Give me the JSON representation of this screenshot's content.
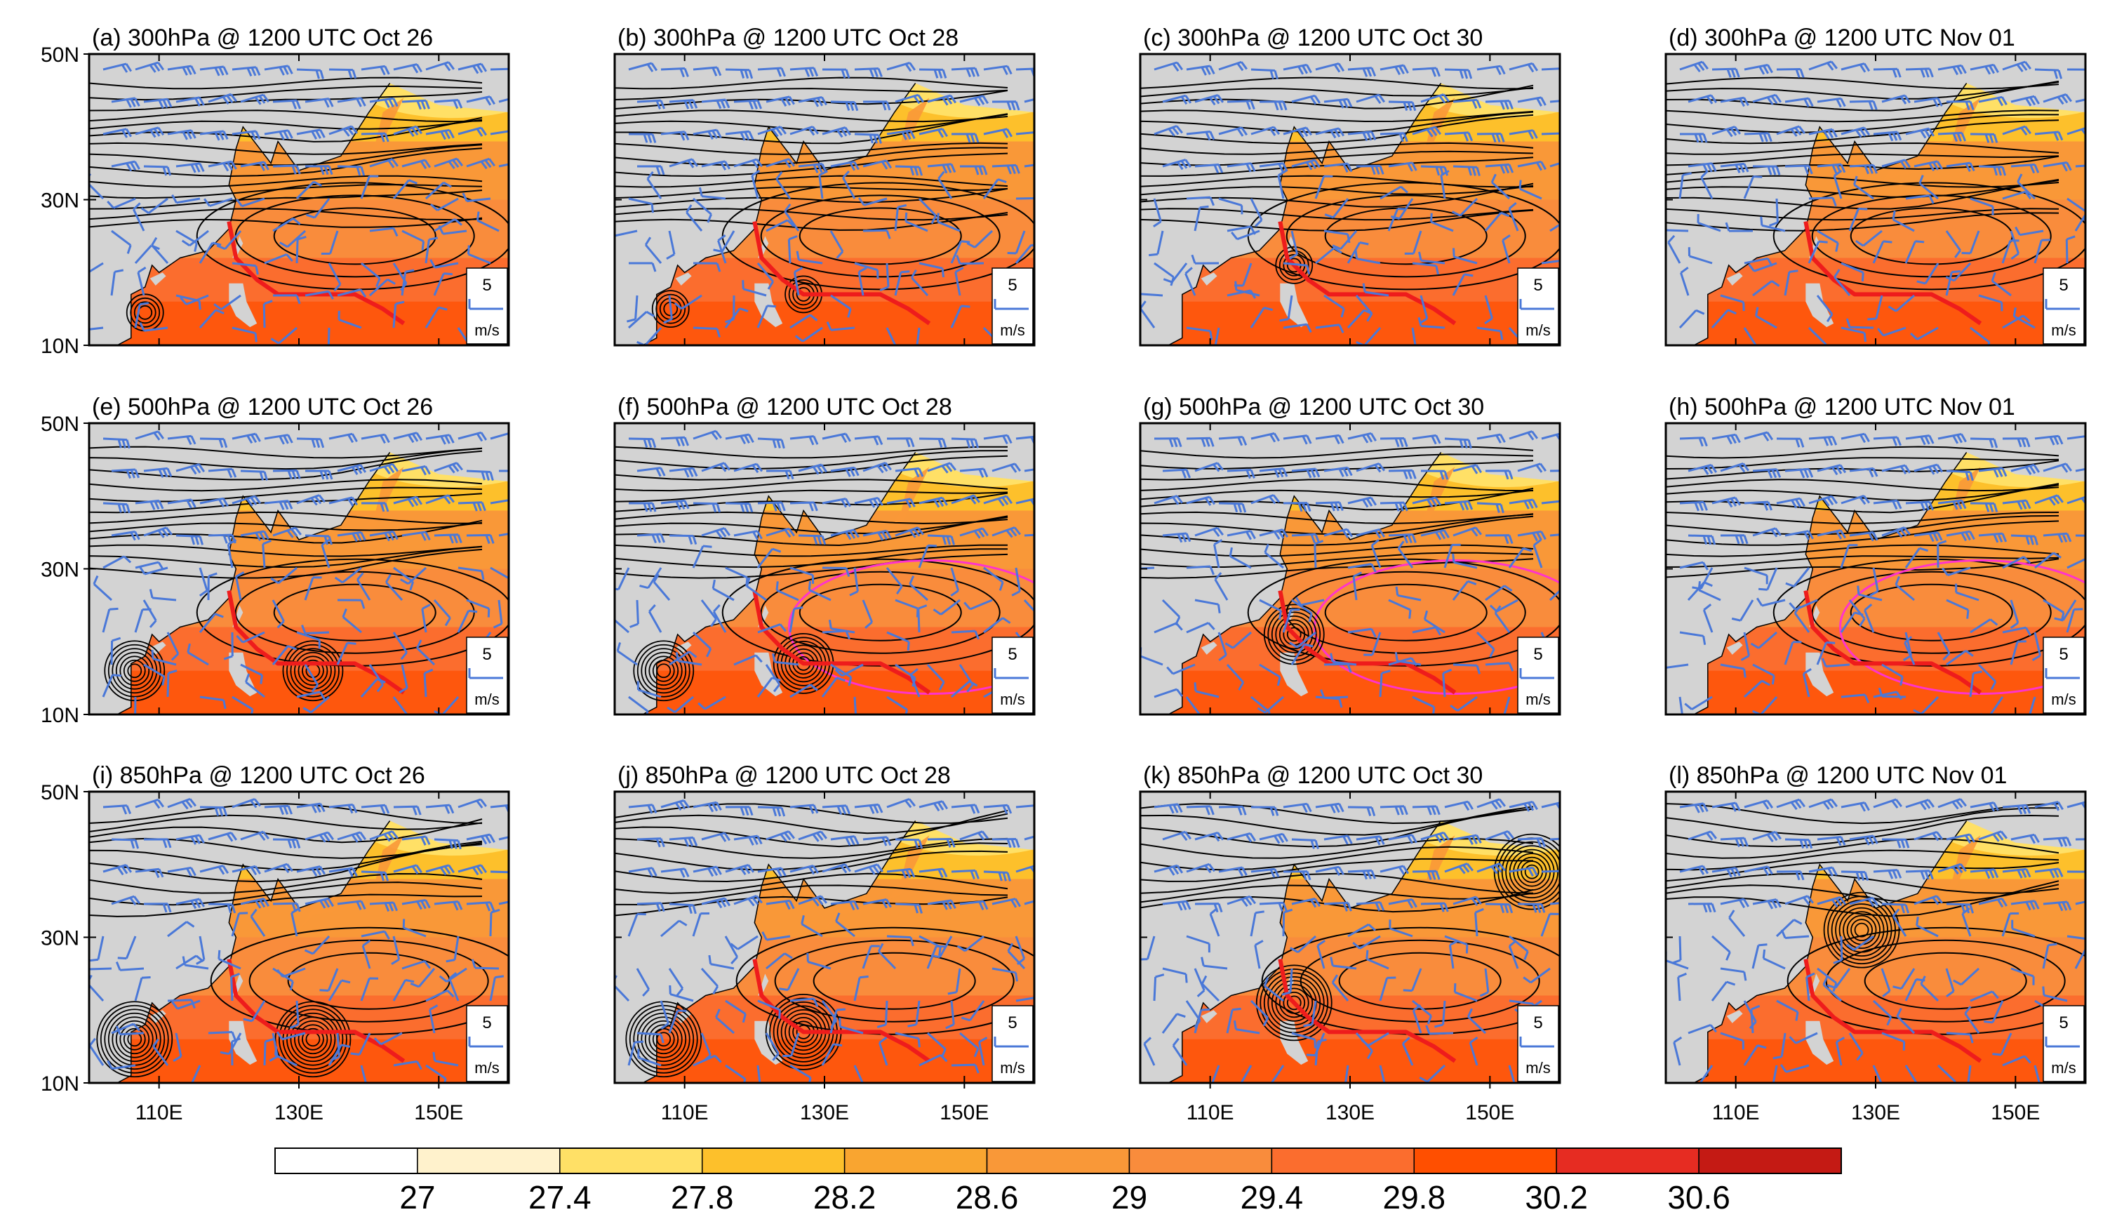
{
  "colors": {
    "land": "#d3d3d3",
    "contour": "#000000",
    "wind": "#4a78d8",
    "track": "#ee1c1c",
    "magenta": "#ff33cc",
    "scale": [
      "#ffffff",
      "#fff2cc",
      "#ffe066",
      "#fdc02b",
      "#f9a530",
      "#f99838",
      "#f98c3c",
      "#fb6d2e",
      "#ff4f00",
      "#e62c22",
      "#c41a14"
    ]
  },
  "icons": {
    "wind_barb": "wind-barb-icon"
  },
  "chart_data": [
    {
      "panel": "a",
      "type": "heatmap",
      "title": "(a) 300hPa @ 1200 UTC Oct 26",
      "level": "300hPa",
      "time": "1200 UTC Oct 26",
      "magenta_contour": false,
      "cyclones": [
        {
          "lon": 108,
          "lat": 14.5
        }
      ],
      "legend": {
        "value": "5",
        "unit": "m/s"
      }
    },
    {
      "panel": "b",
      "type": "heatmap",
      "title": "(b) 300hPa @ 1200 UTC Oct 28",
      "level": "300hPa",
      "time": "1200 UTC Oct 28",
      "magenta_contour": false,
      "cyclones": [
        {
          "lon": 127,
          "lat": 17
        },
        {
          "lon": 108,
          "lat": 15
        }
      ],
      "legend": {
        "value": "5",
        "unit": "m/s"
      }
    },
    {
      "panel": "c",
      "type": "heatmap",
      "title": "(c) 300hPa @ 1200 UTC Oct 30",
      "level": "300hPa",
      "time": "1200 UTC Oct 30",
      "magenta_contour": false,
      "cyclones": [
        {
          "lon": 122,
          "lat": 21
        }
      ],
      "legend": {
        "value": "5",
        "unit": "m/s"
      }
    },
    {
      "panel": "d",
      "type": "heatmap",
      "title": "(d) 300hPa @ 1200 UTC Nov 01",
      "level": "300hPa",
      "time": "1200 UTC Nov 01",
      "magenta_contour": false,
      "cyclones": [],
      "legend": {
        "value": "5",
        "unit": "m/s"
      }
    },
    {
      "panel": "e",
      "type": "heatmap",
      "title": "(e) 500hPa @ 1200 UTC Oct 26",
      "level": "500hPa",
      "time": "1200 UTC Oct 26",
      "magenta_contour": false,
      "cyclones": [
        {
          "lon": 106.5,
          "lat": 16
        },
        {
          "lon": 132,
          "lat": 16
        }
      ],
      "legend": {
        "value": "5",
        "unit": "m/s"
      }
    },
    {
      "panel": "f",
      "type": "heatmap",
      "title": "(f) 500hPa @ 1200 UTC Oct 28",
      "level": "500hPa",
      "time": "1200 UTC Oct 28",
      "magenta_contour": true,
      "cyclones": [
        {
          "lon": 127,
          "lat": 17
        },
        {
          "lon": 107,
          "lat": 16
        }
      ],
      "legend": {
        "value": "5",
        "unit": "m/s"
      }
    },
    {
      "panel": "g",
      "type": "heatmap",
      "title": "(g) 500hPa @ 1200 UTC Oct 30",
      "level": "500hPa",
      "time": "1200 UTC Oct 30",
      "magenta_contour": true,
      "cyclones": [
        {
          "lon": 122,
          "lat": 21
        }
      ],
      "legend": {
        "value": "5",
        "unit": "m/s"
      }
    },
    {
      "panel": "h",
      "type": "heatmap",
      "title": "(h) 500hPa @ 1200 UTC Nov 01",
      "level": "500hPa",
      "time": "1200 UTC Nov 01",
      "magenta_contour": true,
      "cyclones": [],
      "legend": {
        "value": "5",
        "unit": "m/s"
      }
    },
    {
      "panel": "i",
      "type": "heatmap",
      "title": "(i) 850hPa @ 1200 UTC Oct 26",
      "level": "850hPa",
      "time": "1200 UTC Oct 26",
      "magenta_contour": false,
      "cyclones": [
        {
          "lon": 106.5,
          "lat": 16
        },
        {
          "lon": 132,
          "lat": 16
        }
      ],
      "legend": {
        "value": "5",
        "unit": "m/s"
      }
    },
    {
      "panel": "j",
      "type": "heatmap",
      "title": "(j) 850hPa @ 1200 UTC Oct 28",
      "level": "850hPa",
      "time": "1200 UTC Oct 28",
      "magenta_contour": false,
      "cyclones": [
        {
          "lon": 127,
          "lat": 17
        },
        {
          "lon": 107,
          "lat": 16
        }
      ],
      "legend": {
        "value": "5",
        "unit": "m/s"
      }
    },
    {
      "panel": "k",
      "type": "heatmap",
      "title": "(k) 850hPa @ 1200 UTC Oct 30",
      "level": "850hPa",
      "time": "1200 UTC Oct 30",
      "magenta_contour": false,
      "cyclones": [
        {
          "lon": 122,
          "lat": 21
        },
        {
          "lon": 156,
          "lat": 39
        }
      ],
      "legend": {
        "value": "5",
        "unit": "m/s"
      }
    },
    {
      "panel": "l",
      "type": "heatmap",
      "title": "(l) 850hPa @ 1200 UTC Nov 01",
      "level": "850hPa",
      "time": "1200 UTC Nov 01",
      "magenta_contour": false,
      "cyclones": [
        {
          "lon": 128,
          "lat": 31
        }
      ],
      "legend": {
        "value": "5",
        "unit": "m/s"
      }
    }
  ],
  "axes": {
    "lon_range": [
      100,
      160
    ],
    "lat_range": [
      10,
      50
    ],
    "x_ticks": [
      "110E",
      "130E",
      "150E"
    ],
    "x_tick_values": [
      110,
      130,
      150
    ],
    "y_ticks": [
      "50N",
      "30N",
      "10N"
    ],
    "y_tick_values": [
      50,
      30,
      10
    ]
  },
  "track": {
    "lon": [
      120,
      121,
      124,
      127,
      130,
      134,
      138,
      142,
      145
    ],
    "lat": [
      27,
      22,
      19,
      17,
      17,
      17,
      17,
      15,
      13
    ]
  },
  "colorbar": {
    "labels": [
      "27",
      "27.4",
      "27.8",
      "28.2",
      "28.6",
      "29",
      "29.4",
      "29.8",
      "30.2",
      "30.6"
    ],
    "bounds": [
      27,
      27.4,
      27.8,
      28.2,
      28.6,
      29,
      29.4,
      29.8,
      30.2,
      30.6
    ]
  }
}
